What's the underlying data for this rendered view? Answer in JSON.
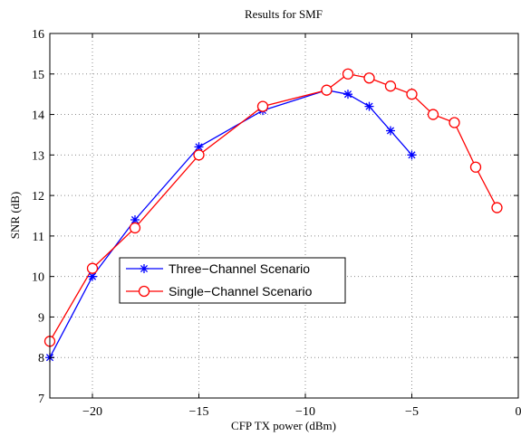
{
  "chart_data": {
    "type": "line",
    "title": "Results for SMF",
    "xlabel": "CFP TX power (dBm)",
    "ylabel": "SNR (dB)",
    "xlim": [
      -22,
      0
    ],
    "ylim": [
      7,
      16
    ],
    "xticks": [
      -20,
      -15,
      -10,
      -5,
      0
    ],
    "xtick_labels": [
      "−20",
      "−15",
      "−10",
      "−5",
      "0"
    ],
    "yticks": [
      7,
      8,
      9,
      10,
      11,
      12,
      13,
      14,
      15,
      16
    ],
    "ytick_labels": [
      "7",
      "8",
      "9",
      "10",
      "11",
      "12",
      "13",
      "14",
      "15",
      "16"
    ],
    "grid": true,
    "legend_position": "center-left",
    "series": [
      {
        "name": "Three−Channel Scenario",
        "color": "#0000ff",
        "marker": "asterisk",
        "x": [
          -22,
          -20,
          -18,
          -15,
          -12,
          -9,
          -8,
          -7,
          -6,
          -5
        ],
        "y": [
          8.0,
          10.0,
          11.4,
          13.2,
          14.1,
          14.6,
          14.5,
          14.2,
          13.6,
          13.0
        ]
      },
      {
        "name": "Single−Channel Scenario",
        "color": "#ff0000",
        "marker": "circle",
        "x": [
          -22,
          -20,
          -18,
          -15,
          -12,
          -9,
          -8,
          -7,
          -6,
          -5,
          -4,
          -3,
          -2,
          -1
        ],
        "y": [
          8.4,
          10.2,
          11.2,
          13.0,
          14.2,
          14.6,
          15.0,
          14.9,
          14.7,
          14.5,
          14.0,
          13.8,
          12.7,
          11.7
        ]
      }
    ]
  }
}
